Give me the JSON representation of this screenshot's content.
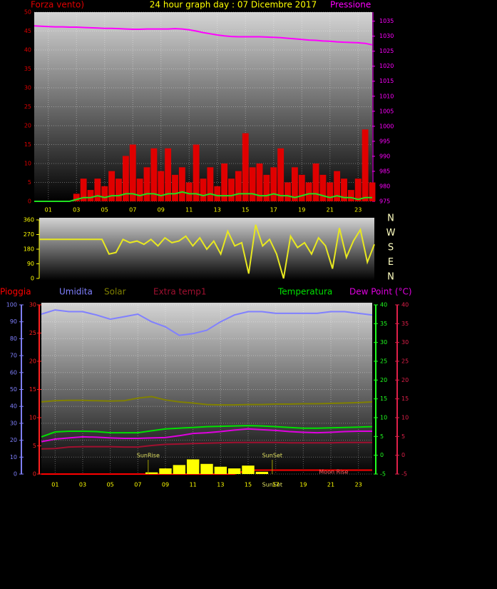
{
  "chart_data": [
    {
      "type": "line",
      "title": "24 hour graph day : 07 Dicembre 2017",
      "ylabel": "Forza vento)",
      "y2label": "Pressione",
      "x": [
        0,
        0.5,
        1,
        1.5,
        2,
        2.5,
        3,
        3.5,
        4,
        4.5,
        5,
        5.5,
        6,
        6.5,
        7,
        7.5,
        8,
        8.5,
        9,
        9.5,
        10,
        10.5,
        11,
        11.5,
        12,
        12.5,
        13,
        13.5,
        14,
        14.5,
        15,
        15.5,
        16,
        16.5,
        17,
        17.5,
        18,
        18.5,
        19,
        19.5,
        20,
        20.5,
        21,
        21.5,
        22,
        22.5,
        23,
        23.5,
        24
      ],
      "xlim": [
        0,
        24
      ],
      "xticks": [
        {
          "value": 1,
          "label": "01"
        },
        {
          "value": 3,
          "label": "03"
        },
        {
          "value": 5,
          "label": "05"
        },
        {
          "value": 7,
          "label": "07"
        },
        {
          "value": 9,
          "label": "09"
        },
        {
          "value": 11,
          "label": "11"
        },
        {
          "value": 13,
          "label": "13"
        },
        {
          "value": 15,
          "label": "15"
        },
        {
          "value": 17,
          "label": "17"
        },
        {
          "value": 19,
          "label": "19"
        },
        {
          "value": 21,
          "label": "21"
        },
        {
          "value": 23,
          "label": "23"
        }
      ],
      "ylim": [
        0,
        50
      ],
      "yticks": [
        0,
        5,
        10,
        15,
        20,
        25,
        30,
        35,
        40,
        45,
        50
      ],
      "y2lim": [
        975,
        1038
      ],
      "y2ticks": [
        975,
        980,
        985,
        990,
        995,
        1000,
        1005,
        1010,
        1015,
        1020,
        1025,
        1030,
        1035
      ],
      "grid": true,
      "series": [
        {
          "color": "#e00000",
          "bars": true,
          "values": [
            0,
            0,
            0,
            0,
            0,
            0,
            2,
            6,
            3,
            6,
            4,
            8,
            6,
            12,
            15,
            6,
            9,
            14,
            8,
            14,
            7,
            9,
            5,
            15,
            6,
            9,
            4,
            10,
            6,
            8,
            18,
            9,
            10,
            7,
            9,
            14,
            5,
            9,
            7,
            5,
            10,
            7,
            5,
            8,
            6,
            3,
            6,
            19,
            5
          ]
        },
        {
          "color": "#20e020",
          "values": [
            0,
            0,
            0,
            0,
            0,
            0,
            0.5,
            1,
            1,
            1.5,
            1,
            1.5,
            1.5,
            2,
            2,
            1.5,
            2,
            2,
            1.5,
            2,
            2,
            2.5,
            2,
            2,
            1.5,
            2,
            1.5,
            1.5,
            1.5,
            2,
            2,
            2,
            1.5,
            1.5,
            2,
            1.5,
            1.5,
            1,
            1.5,
            2,
            2,
            1.5,
            1,
            1.5,
            1,
            1,
            0.5,
            1,
            1
          ]
        },
        {
          "color": "#ff00ff",
          "axis": "y2",
          "values": [
            1033.4,
            1033.3,
            1033.2,
            1033.1,
            1033.1,
            1033.0,
            1033.0,
            1032.9,
            1032.8,
            1032.7,
            1032.6,
            1032.6,
            1032.5,
            1032.4,
            1032.3,
            1032.3,
            1032.4,
            1032.4,
            1032.4,
            1032.4,
            1032.5,
            1032.4,
            1032.1,
            1031.7,
            1031.2,
            1030.8,
            1030.4,
            1030.1,
            1029.9,
            1029.8,
            1029.8,
            1029.8,
            1029.8,
            1029.7,
            1029.6,
            1029.5,
            1029.3,
            1029.1,
            1028.9,
            1028.7,
            1028.6,
            1028.4,
            1028.3,
            1028.1,
            1028.0,
            1027.9,
            1027.8,
            1027.6,
            1027.1
          ]
        }
      ]
    },
    {
      "type": "line",
      "x": [
        0,
        0.5,
        1,
        1.5,
        2,
        2.5,
        3,
        3.5,
        4,
        4.5,
        5,
        5.5,
        6,
        6.5,
        7,
        7.5,
        8,
        8.5,
        9,
        9.5,
        10,
        10.5,
        11,
        11.5,
        12,
        12.5,
        13,
        13.5,
        14,
        14.5,
        15,
        15.5,
        16,
        16.5,
        17,
        17.5,
        18,
        18.5,
        19,
        19.5,
        20,
        20.5,
        21,
        21.5,
        22,
        22.5,
        23,
        23.5,
        24
      ],
      "xlim": [
        0,
        24
      ],
      "ylim": [
        0,
        360
      ],
      "yticks": [
        0,
        90,
        180,
        270,
        360
      ],
      "compass": [
        "N",
        "W",
        "S",
        "E",
        "N"
      ],
      "series": [
        {
          "color": "#e8e820",
          "values": [
            240,
            240,
            240,
            240,
            240,
            240,
            240,
            240,
            240,
            240,
            150,
            160,
            240,
            220,
            230,
            210,
            240,
            200,
            250,
            220,
            230,
            260,
            200,
            250,
            180,
            230,
            150,
            290,
            200,
            220,
            30,
            330,
            200,
            240,
            150,
            0,
            260,
            190,
            220,
            150,
            250,
            200,
            60,
            310,
            130,
            230,
            300,
            100,
            210
          ]
        }
      ]
    },
    {
      "type": "line",
      "x": [
        0,
        1,
        2,
        3,
        4,
        5,
        6,
        7,
        8,
        9,
        10,
        11,
        12,
        13,
        14,
        15,
        16,
        17,
        18,
        19,
        20,
        21,
        22,
        23,
        24
      ],
      "xlim": [
        0,
        24
      ],
      "xticks": [
        {
          "value": 1,
          "label": "01"
        },
        {
          "value": 3,
          "label": "03"
        },
        {
          "value": 5,
          "label": "05"
        },
        {
          "value": 7,
          "label": "07"
        },
        {
          "value": 9,
          "label": "09"
        },
        {
          "value": 11,
          "label": "11"
        },
        {
          "value": 13,
          "label": "13"
        },
        {
          "value": 15,
          "label": "15"
        },
        {
          "value": 17,
          "label": "17"
        },
        {
          "value": 19,
          "label": "19"
        },
        {
          "value": 21,
          "label": "21"
        },
        {
          "value": 23,
          "label": "23"
        }
      ],
      "axes": [
        {
          "lim": [
            0,
            100
          ],
          "ticks": [
            0,
            10,
            20,
            30,
            40,
            50,
            60,
            70,
            80,
            90,
            100
          ],
          "color": "#8080ff"
        },
        {
          "lim": [
            0,
            30
          ],
          "ticks": [
            0,
            5,
            10,
            15,
            20,
            25,
            30
          ],
          "color": "#ff2020"
        },
        {
          "lim": [
            -5,
            40
          ],
          "ticks": [
            -5,
            0,
            5,
            10,
            15,
            20,
            25,
            30,
            35,
            40
          ],
          "color": "#20ff20"
        },
        {
          "lim": [
            -5,
            40
          ],
          "ticks": [
            -5,
            0,
            5,
            10,
            15,
            20,
            25,
            30,
            35,
            40
          ],
          "color": "#e0204a"
        }
      ],
      "grid": true,
      "series": [
        {
          "name": "Pioggia",
          "color": "#ff0000",
          "axis": 1,
          "values": [
            0,
            0,
            0,
            0,
            0,
            0,
            0,
            0,
            0,
            0,
            0,
            0,
            0,
            0,
            0,
            0.7,
            0.7,
            0.7,
            0.7,
            0.7,
            0.7,
            0.7,
            0.7,
            0.7,
            0.7
          ]
        },
        {
          "name": "Umidita",
          "color": "#8080ff",
          "axis": 0,
          "values": [
            94.5,
            97,
            96,
            96,
            94,
            91.5,
            93,
            94.5,
            90,
            87,
            82,
            83,
            85,
            90,
            94,
            96,
            96,
            95,
            95,
            95,
            95,
            96,
            96,
            95,
            94
          ]
        },
        {
          "name": "Solar",
          "color": "#808000",
          "axis": 2,
          "values": [
            14.2,
            14.5,
            14.6,
            14.6,
            14.5,
            14.4,
            14.5,
            15.2,
            15.6,
            14.7,
            14.2,
            13.9,
            13.5,
            13.4,
            13.4,
            13.5,
            13.5,
            13.6,
            13.6,
            13.7,
            13.7,
            13.8,
            13.9,
            14.0,
            14.2
          ]
        },
        {
          "name": "Extra temp1",
          "color": "#a01030",
          "axis": 2,
          "values": [
            1.7,
            1.8,
            2.2,
            2.3,
            2.3,
            2.3,
            2.2,
            2.2,
            2.6,
            2.9,
            3.0,
            3.1,
            3.2,
            3.3,
            3.4,
            3.4,
            3.4,
            3.4,
            3.3,
            3.3,
            3.3,
            3.3,
            3.4,
            3.4,
            3.4
          ]
        },
        {
          "name": "Temperatura",
          "color": "#00e000",
          "axis": 2,
          "values": [
            4.9,
            6.2,
            6.4,
            6.4,
            6.3,
            6.0,
            6.0,
            6.0,
            6.5,
            7.0,
            7.2,
            7.4,
            7.6,
            7.7,
            7.8,
            7.9,
            7.8,
            7.6,
            7.4,
            7.2,
            7.2,
            7.3,
            7.4,
            7.5,
            7.6
          ]
        },
        {
          "name": "Dew Point (°C)",
          "color": "#e000e0",
          "axis": 3,
          "values": [
            3.6,
            4.3,
            4.6,
            4.9,
            4.8,
            4.6,
            4.5,
            4.5,
            4.6,
            4.7,
            5.2,
            5.8,
            6.0,
            6.3,
            6.7,
            7.0,
            6.8,
            6.6,
            6.3,
            6.1,
            6.0,
            6.1,
            6.3,
            6.4,
            6.4
          ]
        },
        {
          "color": "#ffff00",
          "axis": 1,
          "bars": true,
          "values": [
            0,
            0,
            0,
            0,
            0,
            0,
            0,
            0,
            0.3,
            1.0,
            1.6,
            2.6,
            1.8,
            1.3,
            1.0,
            1.5,
            0.4,
            0,
            0,
            0,
            0,
            0,
            0,
            0,
            0
          ]
        }
      ],
      "annotations": [
        {
          "text": "SunRise",
          "x": 7.75
        },
        {
          "text": "SunSet",
          "x": 16.75
        },
        {
          "text": "Moon Rise",
          "x": 21.2
        },
        {
          "text": "SunSet",
          "x": 16.75
        }
      ]
    }
  ]
}
